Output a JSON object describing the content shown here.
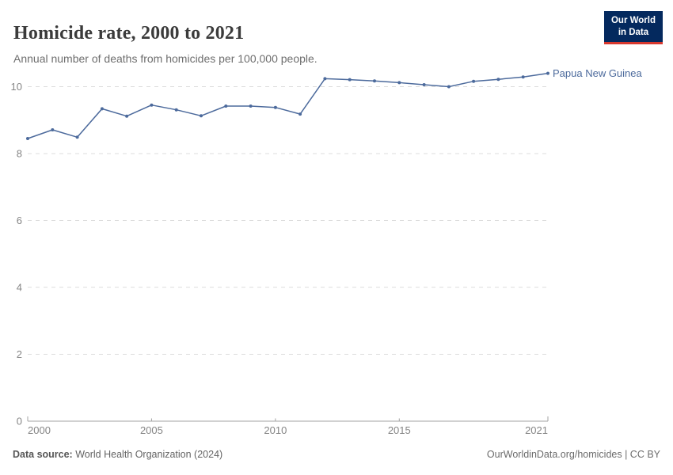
{
  "header": {
    "title": "Homicide rate, 2000 to 2021",
    "subtitle": "Annual number of deaths from homicides per 100,000 people."
  },
  "logo": {
    "line1": "Our World",
    "line2": "in Data",
    "bg_color": "#04295e",
    "accent_color": "#d7382e"
  },
  "chart_data": {
    "type": "line",
    "title": "Homicide rate, 2000 to 2021",
    "xlabel": "",
    "ylabel": "",
    "xlim": [
      2000,
      2021
    ],
    "ylim": [
      0,
      10.5
    ],
    "grid": "horizontal-dashed",
    "legend_position": "end-of-line-label",
    "x_ticks": [
      2000,
      2005,
      2010,
      2015,
      2021
    ],
    "y_ticks": [
      0,
      2,
      4,
      6,
      8,
      10
    ],
    "series": [
      {
        "name": "Papua New Guinea",
        "color": "#4C6A9C",
        "x": [
          2000,
          2001,
          2002,
          2003,
          2004,
          2005,
          2006,
          2007,
          2008,
          2009,
          2010,
          2011,
          2012,
          2013,
          2014,
          2015,
          2016,
          2017,
          2018,
          2019,
          2020,
          2021
        ],
        "values": [
          8.45,
          8.71,
          8.49,
          9.34,
          9.12,
          9.45,
          9.31,
          9.13,
          9.42,
          9.42,
          9.38,
          9.18,
          10.24,
          10.21,
          10.17,
          10.12,
          10.06,
          10.0,
          10.16,
          10.22,
          10.29,
          10.4
        ]
      }
    ],
    "colors": {
      "gridline": "#dcdcdc",
      "axis": "#a3a3a3",
      "tick_label": "#858585"
    }
  },
  "footer": {
    "source_label": "Data source:",
    "source_text": "World Health Organization (2024)",
    "credit": "OurWorldinData.org/homicides | CC BY"
  }
}
